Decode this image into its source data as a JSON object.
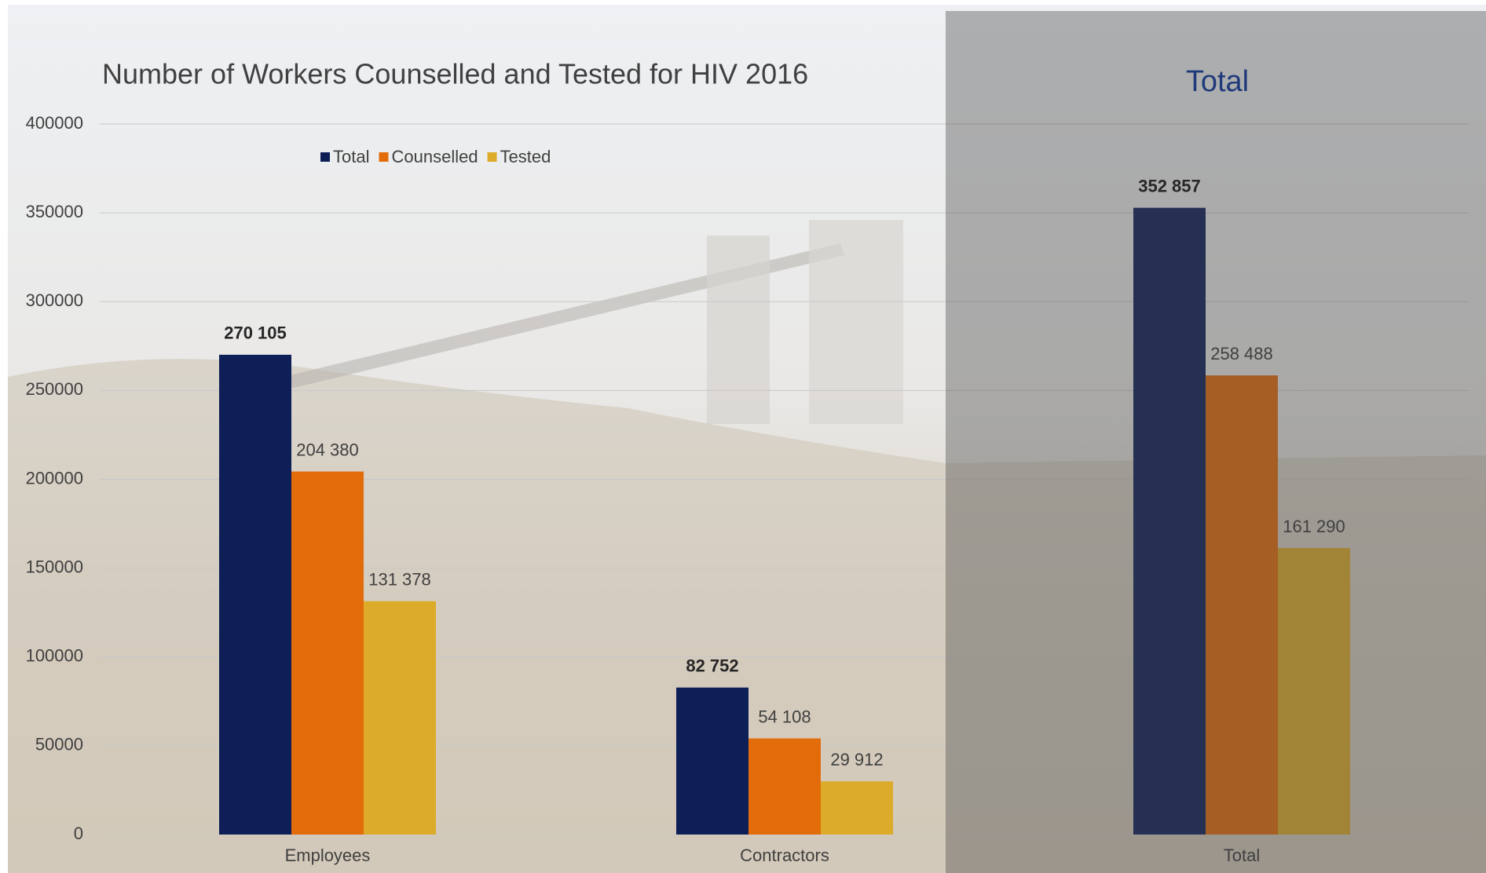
{
  "chart_data": {
    "type": "bar",
    "title": "Number of Workers Counselled  and Tested for HIV 2016",
    "highlight_title": "Total",
    "categories": [
      "Employees",
      "Contractors",
      "Total"
    ],
    "series": [
      {
        "name": "Total",
        "color": "#0e1f57",
        "values": [
          270105,
          82752,
          352857
        ],
        "value_labels": [
          "270 105",
          "82 752",
          "352 857"
        ]
      },
      {
        "name": "Counselled",
        "color": "#e36c0a",
        "values": [
          204380,
          54108,
          258488
        ],
        "value_labels": [
          "204 380",
          "54 108",
          "258 488"
        ]
      },
      {
        "name": "Tested",
        "color": "#dcab2a",
        "values": [
          131378,
          29912,
          161290
        ],
        "value_labels": [
          "131 378",
          "29 912",
          "161 290"
        ]
      }
    ],
    "ylim": [
      0,
      400000
    ],
    "yticks": [
      0,
      50000,
      100000,
      150000,
      200000,
      250000,
      300000,
      350000,
      400000
    ],
    "grid": true,
    "legend": "top"
  }
}
